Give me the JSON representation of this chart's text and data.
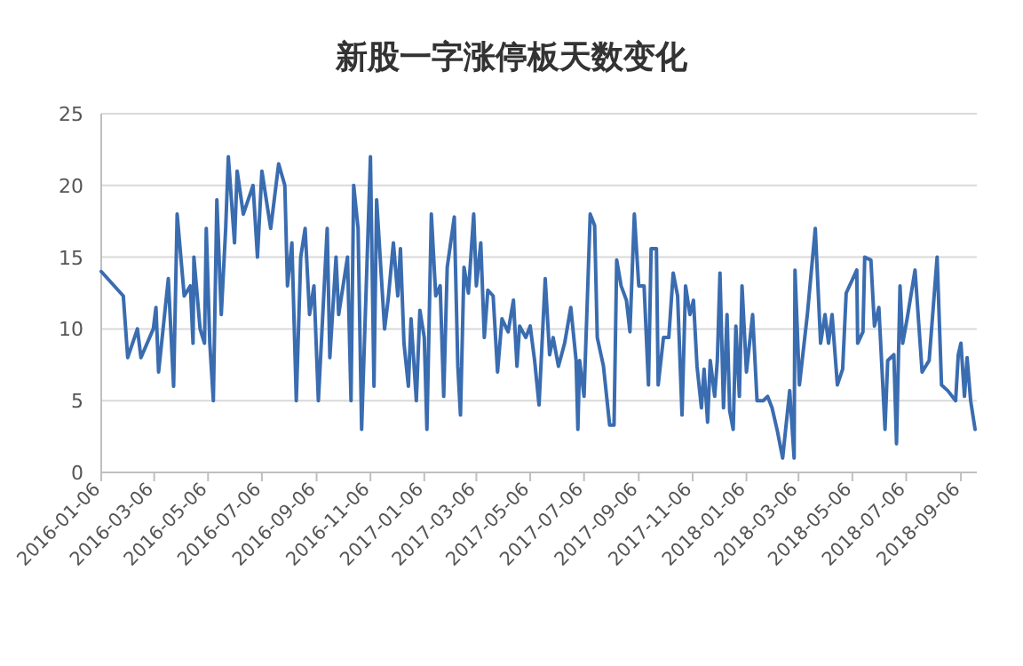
{
  "chart_data": {
    "type": "line",
    "title": "新股一字涨停板天数变化",
    "x": [
      "2016-01-06",
      "2016-01-31",
      "2016-02-05",
      "2016-02-16",
      "2016-02-20",
      "2016-03-05",
      "2016-03-08",
      "2016-03-11",
      "2016-03-22",
      "2016-03-28",
      "2016-04-01",
      "2016-04-09",
      "2016-04-16",
      "2016-04-19",
      "2016-04-20",
      "2016-04-27",
      "2016-05-02",
      "2016-05-04",
      "2016-05-08",
      "2016-05-12",
      "2016-05-16",
      "2016-05-21",
      "2016-05-26",
      "2016-05-29",
      "2016-06-05",
      "2016-06-08",
      "2016-06-15",
      "2016-06-26",
      "2016-07-01",
      "2016-07-06",
      "2016-07-16",
      "2016-07-25",
      "2016-08-01",
      "2016-08-04",
      "2016-08-09",
      "2016-08-14",
      "2016-08-19",
      "2016-08-24",
      "2016-08-29",
      "2016-09-03",
      "2016-09-08",
      "2016-09-18",
      "2016-09-21",
      "2016-09-28",
      "2016-10-01",
      "2016-10-11",
      "2016-10-15",
      "2016-10-18",
      "2016-10-23",
      "2016-10-27",
      "2016-11-06",
      "2016-11-10",
      "2016-11-13",
      "2016-11-17",
      "2016-11-22",
      "2016-11-26",
      "2016-12-02",
      "2016-12-07",
      "2016-12-10",
      "2016-12-14",
      "2016-12-19",
      "2016-12-22",
      "2016-12-28",
      "2017-01-01",
      "2017-01-06",
      "2017-01-09",
      "2017-01-14",
      "2017-01-19",
      "2017-01-24",
      "2017-01-28",
      "2017-02-01",
      "2017-02-09",
      "2017-02-13",
      "2017-02-16",
      "2017-02-20",
      "2017-02-25",
      "2017-03-03",
      "2017-03-06",
      "2017-03-11",
      "2017-03-15",
      "2017-03-19",
      "2017-03-25",
      "2017-03-30",
      "2017-04-04",
      "2017-04-11",
      "2017-04-17",
      "2017-04-21",
      "2017-04-24",
      "2017-05-01",
      "2017-05-06",
      "2017-05-11",
      "2017-05-16",
      "2017-05-23",
      "2017-05-28",
      "2017-06-01",
      "2017-06-07",
      "2017-06-14",
      "2017-06-21",
      "2017-06-27",
      "2017-06-29",
      "2017-07-01",
      "2017-07-06",
      "2017-07-13",
      "2017-07-18",
      "2017-07-21",
      "2017-07-28",
      "2017-08-04",
      "2017-08-09",
      "2017-08-12",
      "2017-08-17",
      "2017-08-23",
      "2017-08-27",
      "2017-09-01",
      "2017-09-06",
      "2017-09-12",
      "2017-09-17",
      "2017-09-20",
      "2017-09-26",
      "2017-09-28",
      "2017-10-04",
      "2017-10-10",
      "2017-10-15",
      "2017-10-20",
      "2017-10-25",
      "2017-10-29",
      "2017-11-03",
      "2017-11-07",
      "2017-11-11",
      "2017-11-16",
      "2017-11-19",
      "2017-11-23",
      "2017-11-26",
      "2017-12-01",
      "2017-12-04",
      "2017-12-07",
      "2017-12-11",
      "2017-12-15",
      "2017-12-18",
      "2017-12-22",
      "2017-12-25",
      "2017-12-29",
      "2018-01-01",
      "2018-01-06",
      "2018-01-13",
      "2018-01-18",
      "2018-01-25",
      "2018-01-30",
      "2018-02-04",
      "2018-02-10",
      "2018-02-16",
      "2018-02-24",
      "2018-03-01",
      "2018-03-02",
      "2018-03-07",
      "2018-03-16",
      "2018-03-25",
      "2018-03-31",
      "2018-04-05",
      "2018-04-09",
      "2018-04-13",
      "2018-04-19",
      "2018-04-25",
      "2018-04-29",
      "2018-05-11",
      "2018-05-12",
      "2018-05-18",
      "2018-05-20",
      "2018-05-27",
      "2018-05-31",
      "2018-06-05",
      "2018-06-12",
      "2018-06-15",
      "2018-06-22",
      "2018-06-25",
      "2018-06-29",
      "2018-07-02",
      "2018-07-07",
      "2018-07-16",
      "2018-07-24",
      "2018-08-01",
      "2018-08-10",
      "2018-08-15",
      "2018-08-22",
      "2018-08-31",
      "2018-09-03",
      "2018-09-06",
      "2018-09-10",
      "2018-09-13",
      "2018-09-17",
      "2018-09-22"
    ],
    "values": [
      14,
      12.3,
      8,
      10,
      8,
      10,
      11.5,
      7,
      13.5,
      6,
      18,
      12.3,
      13,
      9,
      15,
      10,
      9,
      17,
      9,
      5,
      19,
      11,
      17,
      22,
      16,
      21,
      18,
      20,
      15,
      21,
      17,
      21.5,
      20,
      13,
      16,
      5,
      15,
      17,
      11,
      13,
      5,
      17,
      8,
      15,
      11,
      15,
      5,
      20,
      17,
      3,
      22,
      6,
      19,
      15,
      10,
      12,
      16,
      12.3,
      15.6,
      9,
      6,
      10.7,
      5,
      11.3,
      9.4,
      3,
      18,
      12.3,
      13,
      5.3,
      14.3,
      17.8,
      7.4,
      4,
      14.3,
      12.5,
      18,
      13,
      16,
      9.4,
      12.7,
      12.3,
      7,
      10.7,
      9.8,
      12,
      7.4,
      10.2,
      9.4,
      10.2,
      7.8,
      4.7,
      13.5,
      8.2,
      9.4,
      7.4,
      9,
      11.5,
      7.8,
      3,
      7.8,
      5.3,
      18,
      17.2,
      9.4,
      7.4,
      3.3,
      3.3,
      14.8,
      13,
      12,
      9.8,
      18,
      13,
      13,
      6.1,
      15.6,
      15.6,
      6.1,
      9.4,
      9.4,
      13.9,
      12.3,
      4,
      13,
      11,
      12,
      7.4,
      4.5,
      7.2,
      3.5,
      7.8,
      5.3,
      7.8,
      13.9,
      4.5,
      11,
      4.3,
      3,
      10.2,
      5.3,
      13,
      7,
      11,
      5,
      5,
      5.3,
      4.5,
      2.9,
      1,
      5.7,
      1,
      14.1,
      6.1,
      11,
      17,
      9,
      11,
      9,
      11,
      6.1,
      7.2,
      12.5,
      14.1,
      9,
      9.8,
      15,
      14.8,
      10.2,
      11.5,
      3,
      7.8,
      8.2,
      2,
      13,
      9,
      10.7,
      14.1,
      7,
      7.8,
      15,
      6.1,
      5.7,
      5,
      8.2,
      9,
      5.3,
      8,
      5,
      3
    ],
    "color": "#3a6cb0",
    "xlim": [
      "2016-01-06",
      "2018-09-24"
    ],
    "xticks": [
      "2016-01-06",
      "2016-03-06",
      "2016-05-06",
      "2016-07-06",
      "2016-09-06",
      "2016-11-06",
      "2017-01-06",
      "2017-03-06",
      "2017-05-06",
      "2017-07-06",
      "2017-09-06",
      "2017-11-06",
      "2018-01-06",
      "2018-03-06",
      "2018-05-06",
      "2018-07-06",
      "2018-09-06"
    ],
    "ylim": [
      0,
      25
    ],
    "yticks": [
      0,
      5,
      10,
      15,
      20,
      25
    ],
    "grid": "y"
  }
}
